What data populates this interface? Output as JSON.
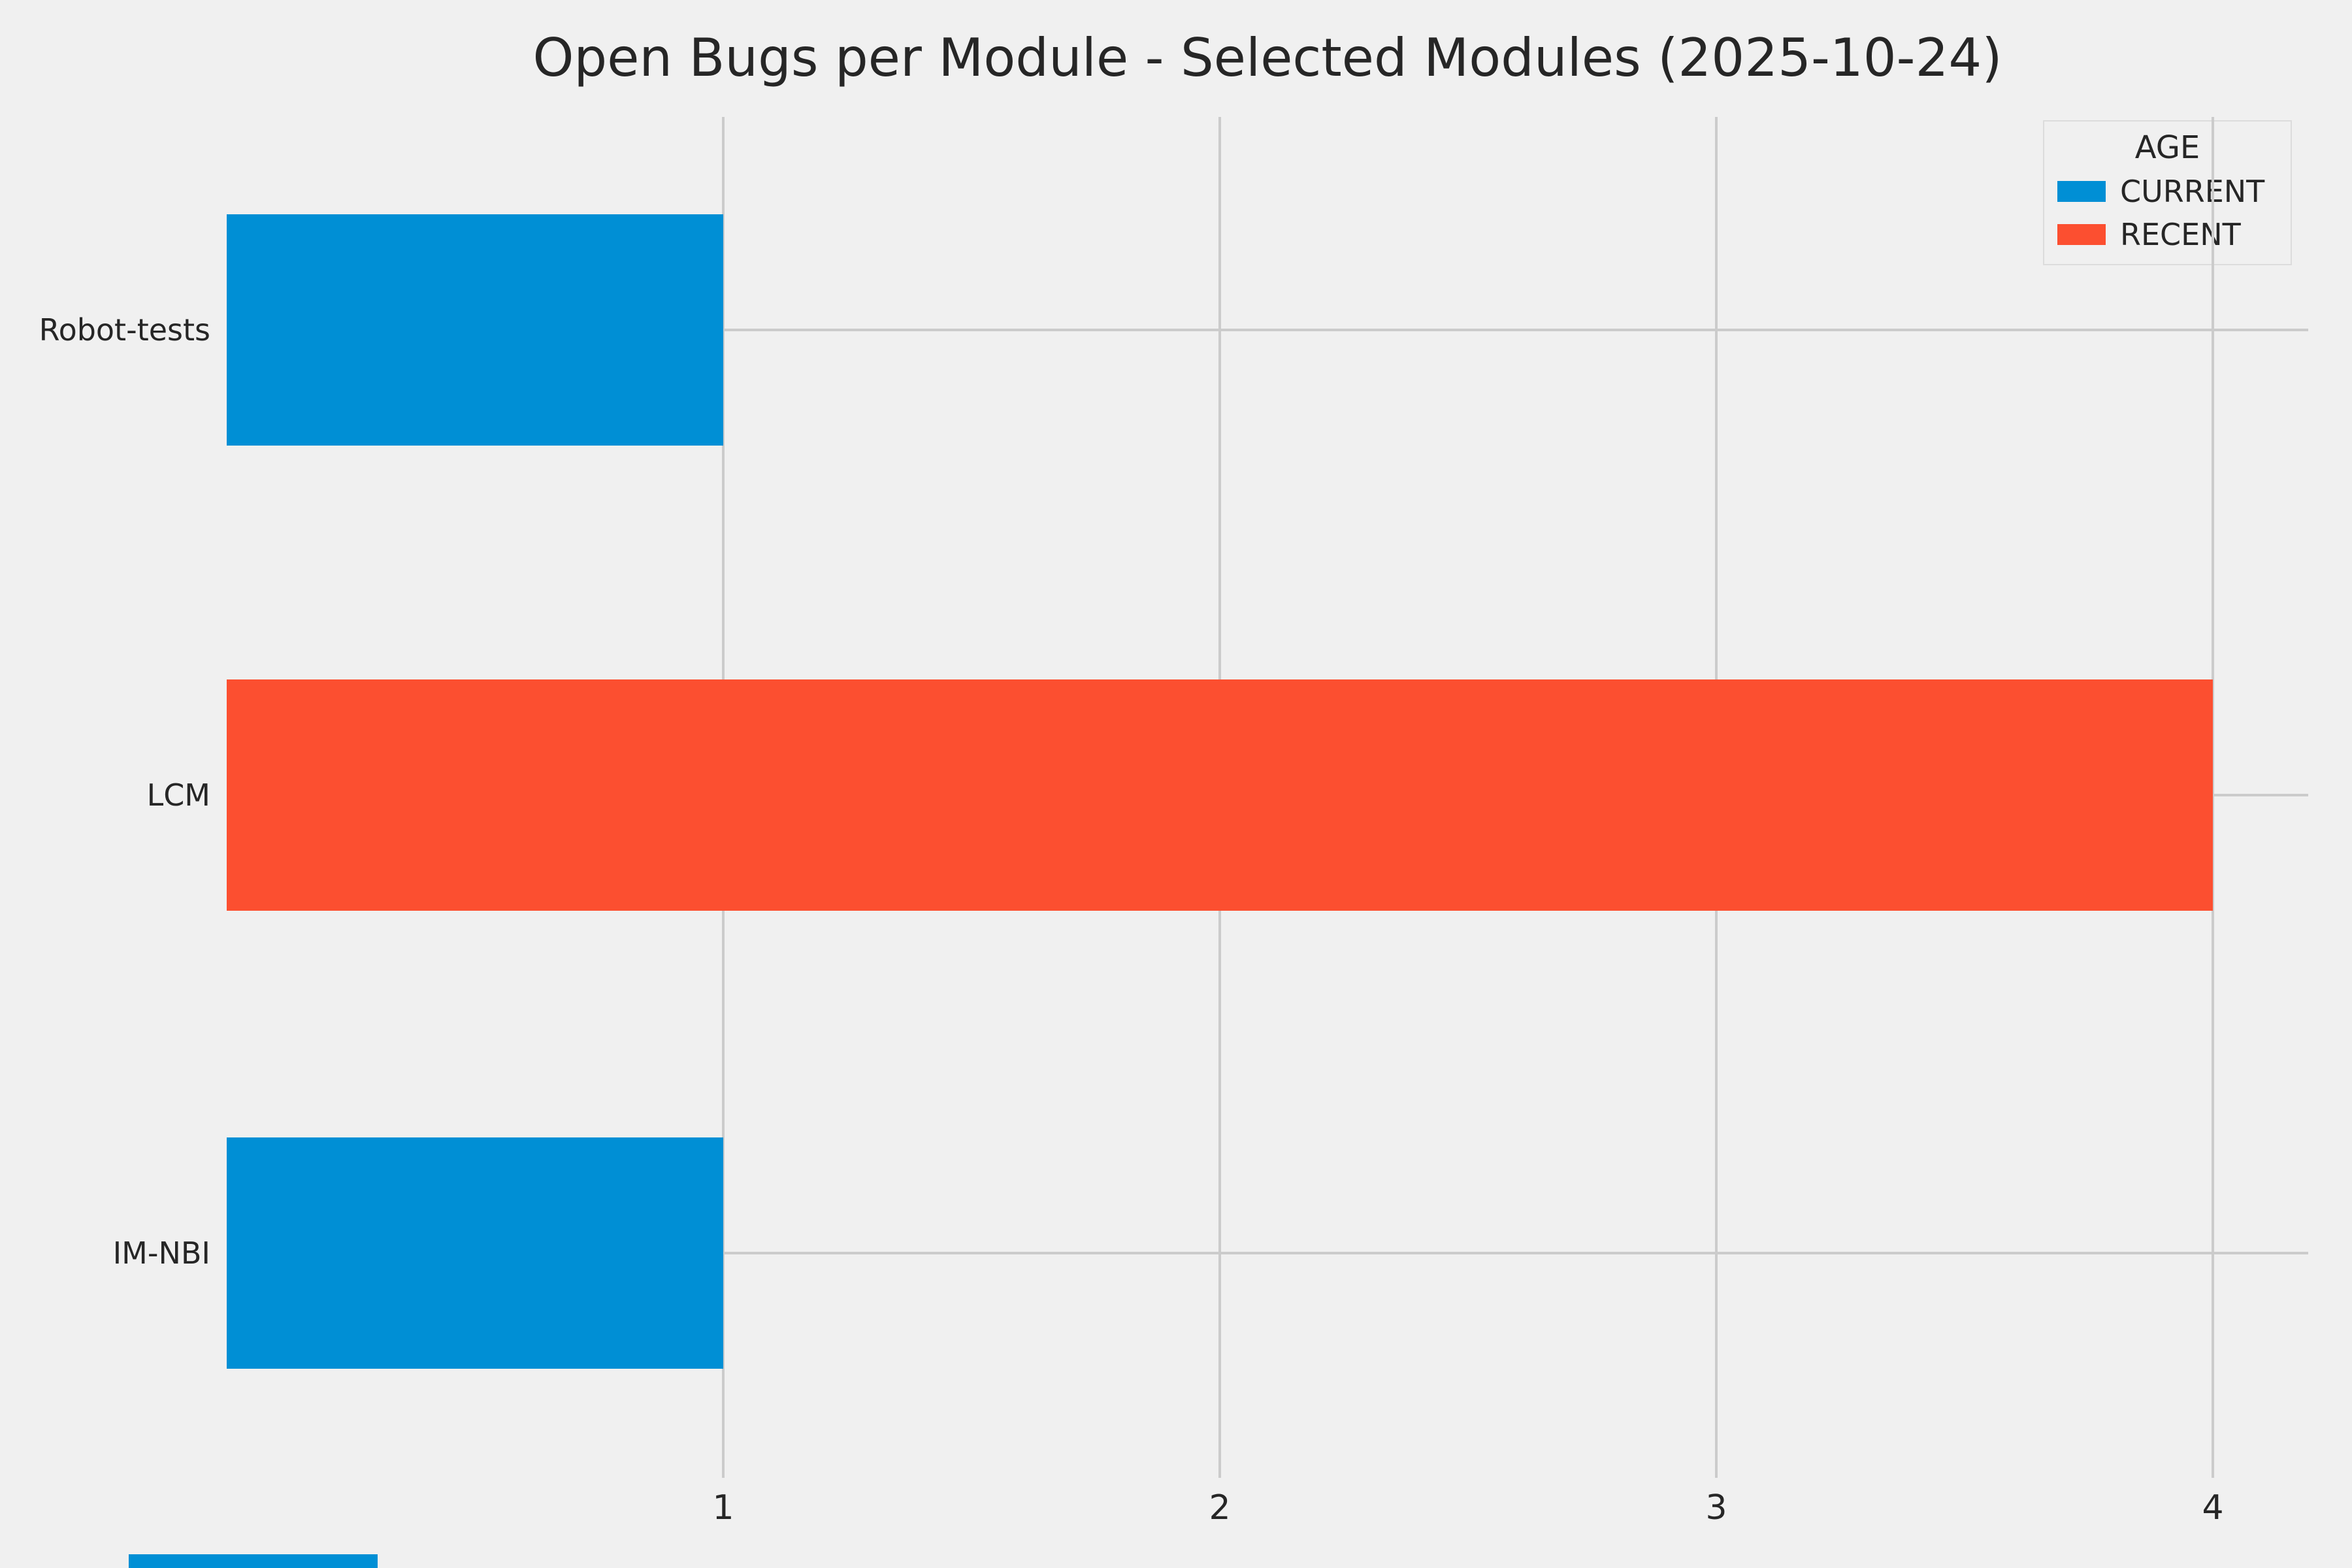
{
  "chart_data": {
    "type": "bar",
    "orientation": "horizontal",
    "title": "Open Bugs per Module - Selected Modules (2025-10-24)",
    "categories": [
      "Robot-tests",
      "LCM",
      "IM-NBI"
    ],
    "values": [
      1,
      4,
      1
    ],
    "bar_series": [
      "CURRENT",
      "RECENT",
      "CURRENT"
    ],
    "series": [
      {
        "name": "CURRENT",
        "categories": [
          "Robot-tests",
          "IM-NBI"
        ],
        "values": [
          1,
          1
        ]
      },
      {
        "name": "RECENT",
        "categories": [
          "LCM"
        ],
        "values": [
          4
        ]
      }
    ],
    "xticks": [
      1,
      2,
      3,
      4
    ],
    "xlim": [
      0,
      4.19
    ],
    "xlabel": "",
    "ylabel": "",
    "grid": true,
    "legend": {
      "title": "AGE",
      "position": "upper right",
      "entries": [
        {
          "label": "CURRENT",
          "color": "#008fd5"
        },
        {
          "label": "RECENT",
          "color": "#fc4f30"
        }
      ]
    },
    "background_color": "#f0f0f0",
    "gridline_color": "#cbcbcb"
  }
}
